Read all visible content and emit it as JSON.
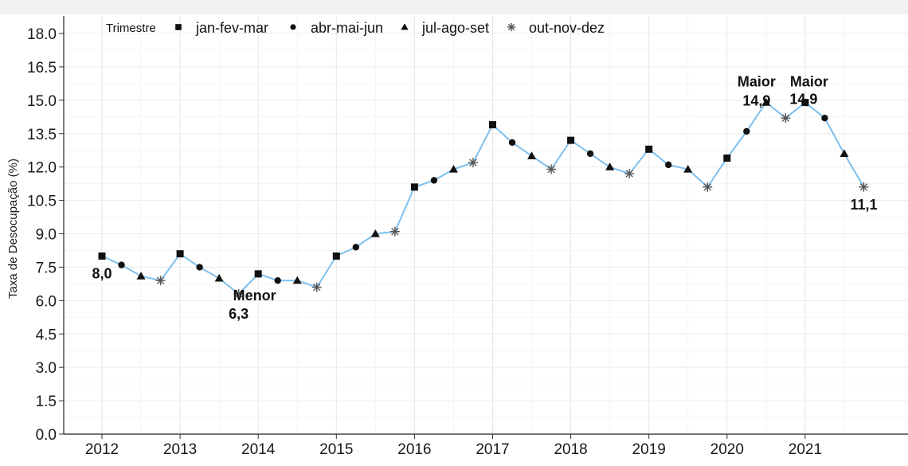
{
  "chart_data": {
    "type": "line",
    "title": "",
    "xlabel": "",
    "ylabel": "Taxa de Desocupação (%)",
    "ylim": [
      0,
      18.5
    ],
    "yticks": [
      "0.0",
      "1.5",
      "3.0",
      "4.5",
      "6.0",
      "7.5",
      "9.0",
      "10.5",
      "12.0",
      "13.5",
      "15.0",
      "16.5",
      "18.0"
    ],
    "xticks": [
      "2012",
      "2013",
      "2014",
      "2015",
      "2016",
      "2017",
      "2018",
      "2019",
      "2020",
      "2021"
    ],
    "grid": true,
    "line_color": "#7cc0ee",
    "legend": {
      "title": "Trimestre",
      "position": "top-left",
      "items": [
        {
          "label": "jan-fev-mar",
          "shape": "square"
        },
        {
          "label": "abr-mai-jun",
          "shape": "circle"
        },
        {
          "label": "jul-ago-set",
          "shape": "triangle"
        },
        {
          "label": "out-nov-dez",
          "shape": "asterisk"
        }
      ]
    },
    "points": [
      {
        "year": 2012,
        "quarter": 1,
        "value": 8.0
      },
      {
        "year": 2012,
        "quarter": 2,
        "value": 7.6
      },
      {
        "year": 2012,
        "quarter": 3,
        "value": 7.1
      },
      {
        "year": 2012,
        "quarter": 4,
        "value": 6.9
      },
      {
        "year": 2013,
        "quarter": 1,
        "value": 8.1
      },
      {
        "year": 2013,
        "quarter": 2,
        "value": 7.5
      },
      {
        "year": 2013,
        "quarter": 3,
        "value": 7.0
      },
      {
        "year": 2013,
        "quarter": 4,
        "value": 6.3
      },
      {
        "year": 2014,
        "quarter": 1,
        "value": 7.2
      },
      {
        "year": 2014,
        "quarter": 2,
        "value": 6.9
      },
      {
        "year": 2014,
        "quarter": 3,
        "value": 6.9
      },
      {
        "year": 2014,
        "quarter": 4,
        "value": 6.6
      },
      {
        "year": 2015,
        "quarter": 1,
        "value": 8.0
      },
      {
        "year": 2015,
        "quarter": 2,
        "value": 8.4
      },
      {
        "year": 2015,
        "quarter": 3,
        "value": 9.0
      },
      {
        "year": 2015,
        "quarter": 4,
        "value": 9.1
      },
      {
        "year": 2016,
        "quarter": 1,
        "value": 11.1
      },
      {
        "year": 2016,
        "quarter": 2,
        "value": 11.4
      },
      {
        "year": 2016,
        "quarter": 3,
        "value": 11.9
      },
      {
        "year": 2016,
        "quarter": 4,
        "value": 12.2
      },
      {
        "year": 2017,
        "quarter": 1,
        "value": 13.9
      },
      {
        "year": 2017,
        "quarter": 2,
        "value": 13.1
      },
      {
        "year": 2017,
        "quarter": 3,
        "value": 12.5
      },
      {
        "year": 2017,
        "quarter": 4,
        "value": 11.9
      },
      {
        "year": 2018,
        "quarter": 1,
        "value": 13.2
      },
      {
        "year": 2018,
        "quarter": 2,
        "value": 12.6
      },
      {
        "year": 2018,
        "quarter": 3,
        "value": 12.0
      },
      {
        "year": 2018,
        "quarter": 4,
        "value": 11.7
      },
      {
        "year": 2019,
        "quarter": 1,
        "value": 12.8
      },
      {
        "year": 2019,
        "quarter": 2,
        "value": 12.1
      },
      {
        "year": 2019,
        "quarter": 3,
        "value": 11.9
      },
      {
        "year": 2019,
        "quarter": 4,
        "value": 11.1
      },
      {
        "year": 2020,
        "quarter": 1,
        "value": 12.4
      },
      {
        "year": 2020,
        "quarter": 2,
        "value": 13.6
      },
      {
        "year": 2020,
        "quarter": 3,
        "value": 14.9
      },
      {
        "year": 2020,
        "quarter": 4,
        "value": 14.2
      },
      {
        "year": 2021,
        "quarter": 1,
        "value": 14.9
      },
      {
        "year": 2021,
        "quarter": 2,
        "value": 14.2
      },
      {
        "year": 2021,
        "quarter": 3,
        "value": 12.6
      },
      {
        "year": 2021,
        "quarter": 4,
        "value": 11.1
      }
    ],
    "annotations": [
      {
        "index": 0,
        "lines": [
          "8,0"
        ]
      },
      {
        "index": 7,
        "lines": [
          "Menor",
          "6,3"
        ]
      },
      {
        "index": 34,
        "lines": [
          "Maior",
          "14,9"
        ]
      },
      {
        "index": 36,
        "lines": [
          "Maior",
          "14,9"
        ]
      },
      {
        "index": 39,
        "lines": [
          "11,1"
        ]
      }
    ]
  }
}
